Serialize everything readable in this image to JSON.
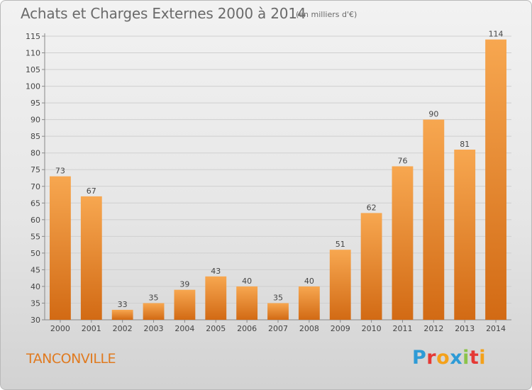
{
  "title": "Achats et Charges Externes 2000 à 2014",
  "unit_note": "(en milliers d'€)",
  "place_name": "TANCONVILLE",
  "logo": {
    "letters": [
      "P",
      "r",
      "o",
      "x",
      "i",
      "t",
      "i"
    ],
    "colors": [
      "#2e9bd6",
      "#e53935",
      "#f4a11a",
      "#2e9bd6",
      "#8bc34a",
      "#e53935",
      "#f4a11a"
    ]
  },
  "colors": {
    "bar_light": "#f7a750",
    "bar_dark": "#d26a14",
    "grid": "#cfcfcf",
    "axis_text": "#444444"
  },
  "chart_data": {
    "type": "bar",
    "categories": [
      "2000",
      "2001",
      "2002",
      "2003",
      "2004",
      "2005",
      "2006",
      "2007",
      "2008",
      "2009",
      "2010",
      "2011",
      "2012",
      "2013",
      "2014"
    ],
    "values": [
      73,
      67,
      33,
      35,
      39,
      43,
      40,
      35,
      40,
      51,
      62,
      76,
      90,
      81,
      114
    ],
    "ylim": [
      30,
      115
    ],
    "yticks": [
      30,
      35,
      40,
      45,
      50,
      55,
      60,
      65,
      70,
      75,
      80,
      85,
      90,
      95,
      100,
      105,
      110,
      115
    ],
    "grid": true,
    "data_labels": true
  }
}
